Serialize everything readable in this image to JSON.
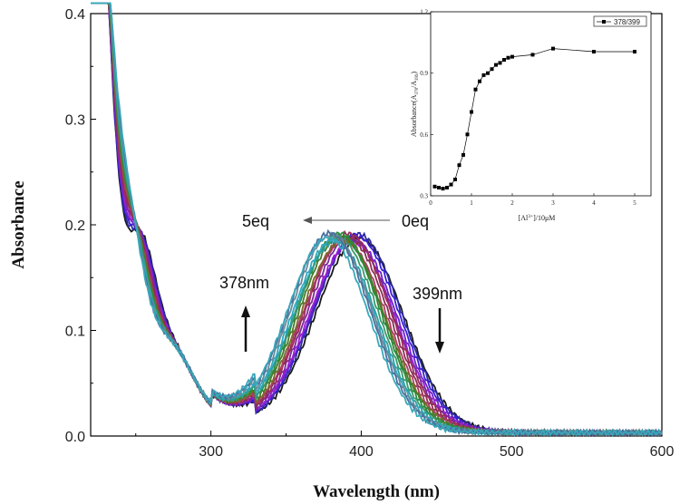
{
  "chart_data": [
    {
      "type": "line",
      "title": "",
      "xlabel": "Wavelength (nm)",
      "ylabel": "Absorbance",
      "xlim": [
        220,
        600
      ],
      "ylim": [
        0.0,
        0.4
      ],
      "x_ticks": [
        300,
        400,
        500,
        600
      ],
      "x_tick_labels": [
        "300",
        "400",
        "500",
        "600"
      ],
      "y_ticks": [
        0.0,
        0.1,
        0.2,
        0.3,
        0.4
      ],
      "y_tick_labels": [
        "0.0",
        "0.1",
        "0.2",
        "0.3",
        "0.4"
      ],
      "series_count": 18,
      "series_colors": [
        "#1a1a1a",
        "#2a2aa0",
        "#3b1fd6",
        "#6a22c8",
        "#9b1fd0",
        "#7a2a9a",
        "#a02a5a",
        "#8a3050",
        "#b03a6a",
        "#7a6a2a",
        "#4a7a2a",
        "#2a8a3a",
        "#3a9a6a",
        "#2aa0a0",
        "#30a8c0",
        "#6a8a9a",
        "#4a70a0",
        "#3aa8b8"
      ],
      "annotations": {
        "left_eq": "5eq",
        "right_eq": "0eq",
        "left_nm": "378nm",
        "right_nm": "399nm"
      }
    },
    {
      "type": "line",
      "title": "",
      "xlabel": "[Al3+]/10μM",
      "xlabel_parts": [
        "[Al",
        "3+",
        "]/10μM"
      ],
      "ylabel": "Absorbance(A378/A399)",
      "ylabel_parts": [
        "Absorbance(A",
        "378",
        "/A",
        "399",
        ")"
      ],
      "legend": "378/399",
      "xlim": [
        0,
        5.4
      ],
      "ylim": [
        0.3,
        1.2
      ],
      "x_ticks": [
        0,
        1,
        2,
        3,
        4,
        5
      ],
      "x_tick_labels": [
        "0",
        "1",
        "2",
        "3",
        "4",
        "5"
      ],
      "y_ticks": [
        0.3,
        0.6,
        0.9,
        1.2
      ],
      "y_tick_labels": [
        "0.3",
        "0.6",
        "0.9",
        "1.2"
      ],
      "x": [
        0.1,
        0.2,
        0.3,
        0.4,
        0.5,
        0.6,
        0.7,
        0.8,
        0.9,
        1.0,
        1.1,
        1.2,
        1.3,
        1.4,
        1.5,
        1.6,
        1.7,
        1.8,
        1.9,
        2.0,
        2.5,
        3.0,
        4.0,
        5.0
      ],
      "values": [
        0.345,
        0.34,
        0.335,
        0.34,
        0.355,
        0.38,
        0.45,
        0.5,
        0.6,
        0.71,
        0.82,
        0.86,
        0.89,
        0.9,
        0.92,
        0.94,
        0.95,
        0.965,
        0.975,
        0.98,
        0.99,
        1.02,
        1.005,
        1.005
      ]
    }
  ]
}
